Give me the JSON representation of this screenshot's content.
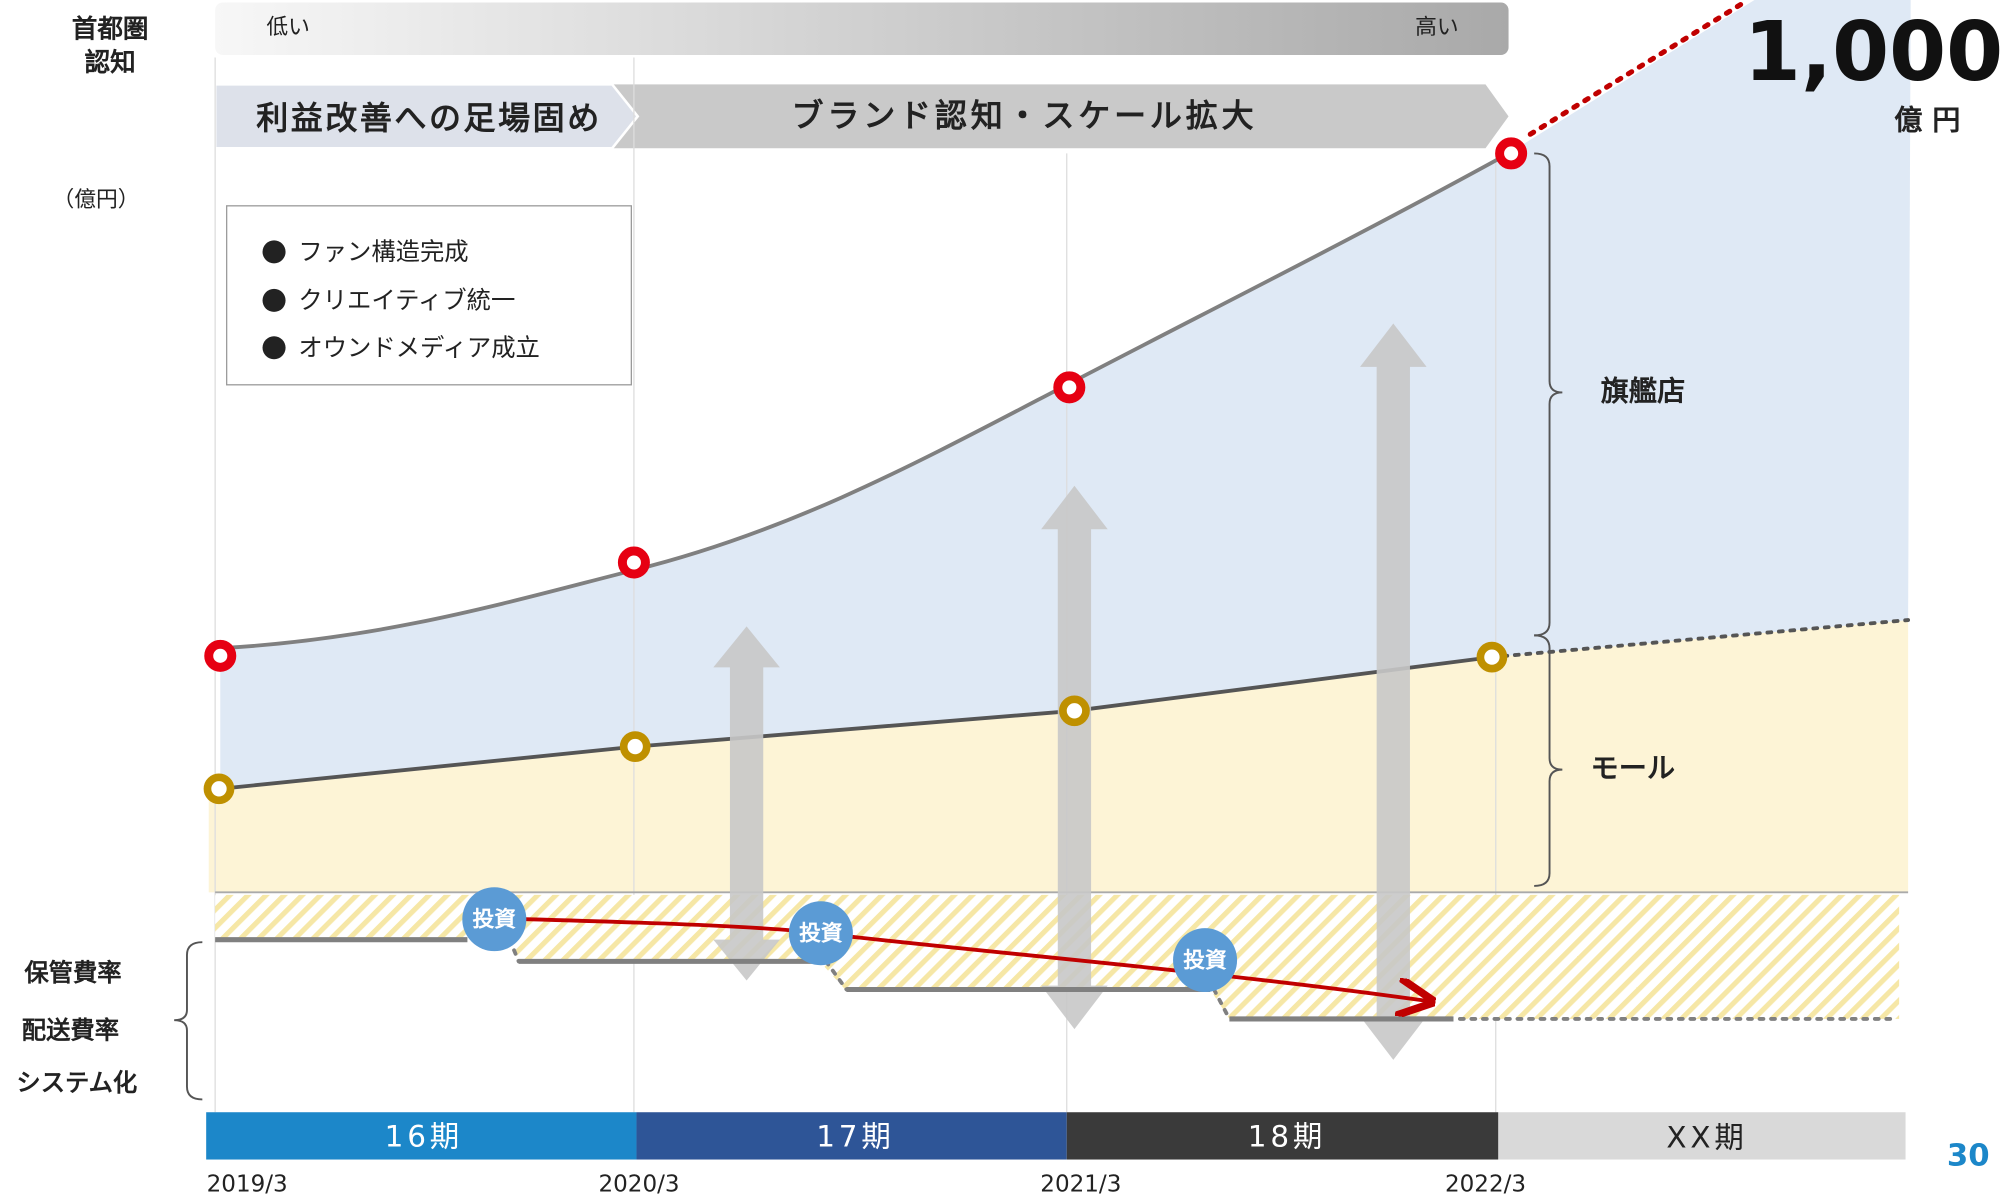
{
  "awareness": {
    "label": [
      "首都圏",
      "認知"
    ],
    "low": "低い",
    "high": "高い"
  },
  "phases": [
    "利益改善への足場固め",
    "ブランド認知・スケール拡大"
  ],
  "unit": "（億円）",
  "legend": [
    "ファン構造完成",
    "クリエイティブ統一",
    "オウンドメディア成立"
  ],
  "target": {
    "value": "1,000",
    "unit": "億 円"
  },
  "segments": [
    "旗艦店",
    "モール"
  ],
  "cost_labels": [
    "保管費率",
    "配送費率",
    "システム化"
  ],
  "invest": [
    "投資",
    "投資",
    "投資"
  ],
  "periods": [
    "16期",
    "17期",
    "18期",
    "XX期"
  ],
  "dates": [
    "2019/3",
    "2020/3",
    "2021/3",
    "2022/3"
  ],
  "page_number": "30"
}
